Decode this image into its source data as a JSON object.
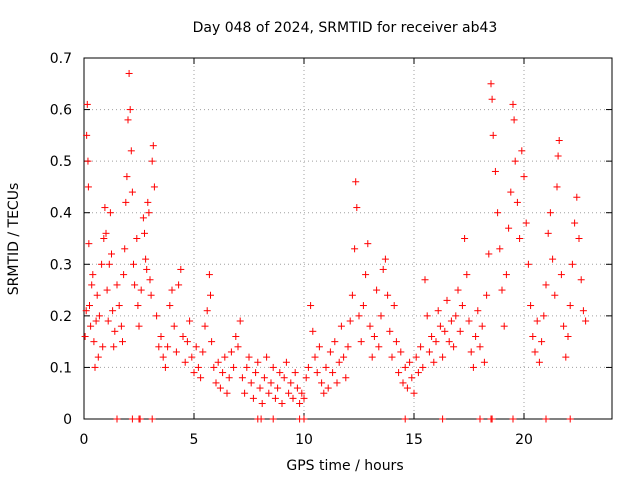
{
  "chart_data": {
    "type": "scatter",
    "title": "Day 048 of 2024, SRMTID for receiver ab43",
    "xlabel": "GPS time / hours",
    "ylabel": "SRMTID / TECUs",
    "xlim": [
      0,
      24
    ],
    "ylim": [
      0,
      0.7
    ],
    "xticks": [
      "0",
      "5",
      "10",
      "15",
      "20"
    ],
    "yticks": [
      "0",
      "0.1",
      "0.2",
      "0.3",
      "0.4",
      "0.5",
      "0.6",
      "0.7"
    ],
    "grid": true,
    "marker": "+",
    "series": [
      {
        "name": "SRMTID",
        "color": "#ff0000",
        "points": [
          [
            0.05,
            0.16
          ],
          [
            0.1,
            0.21
          ],
          [
            0.12,
            0.55
          ],
          [
            0.15,
            0.61
          ],
          [
            0.18,
            0.5
          ],
          [
            0.2,
            0.45
          ],
          [
            0.22,
            0.34
          ],
          [
            0.25,
            0.22
          ],
          [
            0.3,
            0.18
          ],
          [
            0.35,
            0.26
          ],
          [
            0.4,
            0.28
          ],
          [
            0.45,
            0.15
          ],
          [
            0.5,
            0.1
          ],
          [
            0.55,
            0.19
          ],
          [
            0.6,
            0.24
          ],
          [
            0.65,
            0.12
          ],
          [
            0.7,
            0.2
          ],
          [
            0.8,
            0.3
          ],
          [
            0.85,
            0.14
          ],
          [
            0.9,
            0.35
          ],
          [
            0.95,
            0.41
          ],
          [
            1.0,
            0.36
          ],
          [
            1.05,
            0.25
          ],
          [
            1.1,
            0.19
          ],
          [
            1.15,
            0.3
          ],
          [
            1.2,
            0.4
          ],
          [
            1.25,
            0.32
          ],
          [
            1.3,
            0.21
          ],
          [
            1.35,
            0.14
          ],
          [
            1.4,
            0.17
          ],
          [
            1.5,
            0.26
          ],
          [
            1.6,
            0.22
          ],
          [
            1.7,
            0.18
          ],
          [
            1.75,
            0.15
          ],
          [
            1.8,
            0.28
          ],
          [
            1.85,
            0.33
          ],
          [
            1.9,
            0.42
          ],
          [
            1.95,
            0.47
          ],
          [
            2.0,
            0.58
          ],
          [
            2.05,
            0.67
          ],
          [
            2.1,
            0.6
          ],
          [
            2.15,
            0.52
          ],
          [
            2.2,
            0.44
          ],
          [
            2.25,
            0.3
          ],
          [
            2.3,
            0.26
          ],
          [
            2.4,
            0.35
          ],
          [
            2.45,
            0.22
          ],
          [
            2.5,
            0.18
          ],
          [
            2.6,
            0.25
          ],
          [
            2.7,
            0.39
          ],
          [
            2.75,
            0.36
          ],
          [
            2.8,
            0.31
          ],
          [
            2.85,
            0.29
          ],
          [
            2.9,
            0.42
          ],
          [
            2.95,
            0.4
          ],
          [
            3.0,
            0.27
          ],
          [
            3.05,
            0.24
          ],
          [
            3.1,
            0.5
          ],
          [
            3.15,
            0.53
          ],
          [
            3.2,
            0.45
          ],
          [
            3.3,
            0.2
          ],
          [
            3.4,
            0.14
          ],
          [
            3.5,
            0.16
          ],
          [
            3.6,
            0.12
          ],
          [
            3.7,
            0.1
          ],
          [
            3.8,
            0.14
          ],
          [
            3.9,
            0.22
          ],
          [
            4.0,
            0.25
          ],
          [
            4.1,
            0.18
          ],
          [
            4.2,
            0.13
          ],
          [
            4.3,
            0.26
          ],
          [
            4.4,
            0.29
          ],
          [
            4.5,
            0.16
          ],
          [
            4.6,
            0.11
          ],
          [
            4.7,
            0.15
          ],
          [
            4.8,
            0.19
          ],
          [
            4.9,
            0.12
          ],
          [
            5.0,
            0.09
          ],
          [
            5.1,
            0.14
          ],
          [
            5.2,
            0.1
          ],
          [
            5.3,
            0.08
          ],
          [
            5.4,
            0.13
          ],
          [
            5.5,
            0.18
          ],
          [
            5.6,
            0.21
          ],
          [
            5.7,
            0.28
          ],
          [
            5.75,
            0.24
          ],
          [
            5.8,
            0.15
          ],
          [
            5.9,
            0.1
          ],
          [
            6.0,
            0.07
          ],
          [
            6.1,
            0.11
          ],
          [
            6.2,
            0.06
          ],
          [
            6.3,
            0.09
          ],
          [
            6.4,
            0.12
          ],
          [
            6.5,
            0.05
          ],
          [
            6.6,
            0.08
          ],
          [
            6.7,
            0.13
          ],
          [
            6.8,
            0.1
          ],
          [
            6.9,
            0.16
          ],
          [
            7.0,
            0.14
          ],
          [
            7.1,
            0.19
          ],
          [
            7.2,
            0.08
          ],
          [
            7.3,
            0.05
          ],
          [
            7.4,
            0.1
          ],
          [
            7.5,
            0.12
          ],
          [
            7.6,
            0.07
          ],
          [
            7.7,
            0.04
          ],
          [
            7.8,
            0.09
          ],
          [
            7.9,
            0.11
          ],
          [
            8.0,
            0.06
          ],
          [
            8.1,
            0.03
          ],
          [
            8.2,
            0.08
          ],
          [
            8.3,
            0.12
          ],
          [
            8.4,
            0.05
          ],
          [
            8.5,
            0.07
          ],
          [
            8.6,
            0.1
          ],
          [
            8.7,
            0.04
          ],
          [
            8.8,
            0.06
          ],
          [
            8.9,
            0.09
          ],
          [
            9.0,
            0.03
          ],
          [
            9.1,
            0.08
          ],
          [
            9.2,
            0.11
          ],
          [
            9.3,
            0.05
          ],
          [
            9.4,
            0.07
          ],
          [
            9.5,
            0.04
          ],
          [
            9.6,
            0.09
          ],
          [
            9.7,
            0.06
          ],
          [
            9.8,
            0.03
          ],
          [
            9.9,
            0.05
          ],
          [
            10.0,
            0.04
          ],
          [
            10.1,
            0.08
          ],
          [
            10.2,
            0.1
          ],
          [
            10.3,
            0.22
          ],
          [
            10.4,
            0.17
          ],
          [
            10.5,
            0.12
          ],
          [
            10.6,
            0.09
          ],
          [
            10.7,
            0.14
          ],
          [
            10.8,
            0.07
          ],
          [
            10.9,
            0.05
          ],
          [
            11.0,
            0.1
          ],
          [
            11.1,
            0.06
          ],
          [
            11.2,
            0.13
          ],
          [
            11.3,
            0.09
          ],
          [
            11.4,
            0.15
          ],
          [
            11.5,
            0.07
          ],
          [
            11.6,
            0.11
          ],
          [
            11.7,
            0.18
          ],
          [
            11.8,
            0.12
          ],
          [
            11.9,
            0.08
          ],
          [
            12.0,
            0.14
          ],
          [
            12.1,
            0.19
          ],
          [
            12.2,
            0.24
          ],
          [
            12.3,
            0.33
          ],
          [
            12.35,
            0.46
          ],
          [
            12.4,
            0.41
          ],
          [
            12.5,
            0.2
          ],
          [
            12.6,
            0.15
          ],
          [
            12.7,
            0.22
          ],
          [
            12.8,
            0.28
          ],
          [
            12.9,
            0.34
          ],
          [
            13.0,
            0.18
          ],
          [
            13.1,
            0.12
          ],
          [
            13.2,
            0.16
          ],
          [
            13.3,
            0.25
          ],
          [
            13.4,
            0.14
          ],
          [
            13.5,
            0.2
          ],
          [
            13.6,
            0.29
          ],
          [
            13.7,
            0.31
          ],
          [
            13.8,
            0.24
          ],
          [
            13.9,
            0.17
          ],
          [
            14.0,
            0.12
          ],
          [
            14.1,
            0.22
          ],
          [
            14.2,
            0.15
          ],
          [
            14.3,
            0.09
          ],
          [
            14.4,
            0.13
          ],
          [
            14.5,
            0.07
          ],
          [
            14.6,
            0.1
          ],
          [
            14.7,
            0.06
          ],
          [
            14.8,
            0.11
          ],
          [
            14.9,
            0.08
          ],
          [
            15.0,
            0.05
          ],
          [
            15.1,
            0.12
          ],
          [
            15.2,
            0.09
          ],
          [
            15.3,
            0.14
          ],
          [
            15.4,
            0.1
          ],
          [
            15.5,
            0.27
          ],
          [
            15.6,
            0.2
          ],
          [
            15.7,
            0.13
          ],
          [
            15.8,
            0.16
          ],
          [
            15.9,
            0.11
          ],
          [
            16.0,
            0.15
          ],
          [
            16.1,
            0.21
          ],
          [
            16.2,
            0.18
          ],
          [
            16.3,
            0.12
          ],
          [
            16.4,
            0.17
          ],
          [
            16.5,
            0.23
          ],
          [
            16.6,
            0.15
          ],
          [
            16.7,
            0.19
          ],
          [
            16.8,
            0.14
          ],
          [
            16.9,
            0.2
          ],
          [
            17.0,
            0.25
          ],
          [
            17.1,
            0.17
          ],
          [
            17.2,
            0.22
          ],
          [
            17.3,
            0.35
          ],
          [
            17.4,
            0.28
          ],
          [
            17.5,
            0.19
          ],
          [
            17.6,
            0.13
          ],
          [
            17.7,
            0.1
          ],
          [
            17.8,
            0.16
          ],
          [
            17.9,
            0.21
          ],
          [
            18.0,
            0.14
          ],
          [
            18.1,
            0.18
          ],
          [
            18.2,
            0.11
          ],
          [
            18.3,
            0.24
          ],
          [
            18.4,
            0.32
          ],
          [
            18.5,
            0.65
          ],
          [
            18.55,
            0.62
          ],
          [
            18.6,
            0.55
          ],
          [
            18.7,
            0.48
          ],
          [
            18.8,
            0.4
          ],
          [
            18.9,
            0.33
          ],
          [
            19.0,
            0.25
          ],
          [
            19.1,
            0.18
          ],
          [
            19.2,
            0.28
          ],
          [
            19.3,
            0.37
          ],
          [
            19.4,
            0.44
          ],
          [
            19.5,
            0.61
          ],
          [
            19.55,
            0.58
          ],
          [
            19.6,
            0.5
          ],
          [
            19.7,
            0.42
          ],
          [
            19.8,
            0.35
          ],
          [
            19.9,
            0.52
          ],
          [
            20.0,
            0.47
          ],
          [
            20.1,
            0.38
          ],
          [
            20.2,
            0.3
          ],
          [
            20.3,
            0.22
          ],
          [
            20.4,
            0.16
          ],
          [
            20.5,
            0.13
          ],
          [
            20.6,
            0.19
          ],
          [
            20.7,
            0.11
          ],
          [
            20.8,
            0.15
          ],
          [
            20.9,
            0.2
          ],
          [
            21.0,
            0.26
          ],
          [
            21.1,
            0.36
          ],
          [
            21.2,
            0.4
          ],
          [
            21.3,
            0.31
          ],
          [
            21.4,
            0.24
          ],
          [
            21.5,
            0.45
          ],
          [
            21.55,
            0.51
          ],
          [
            21.6,
            0.54
          ],
          [
            21.7,
            0.28
          ],
          [
            21.8,
            0.18
          ],
          [
            21.9,
            0.12
          ],
          [
            22.0,
            0.16
          ],
          [
            22.1,
            0.22
          ],
          [
            22.2,
            0.3
          ],
          [
            22.3,
            0.38
          ],
          [
            22.4,
            0.43
          ],
          [
            22.5,
            0.35
          ],
          [
            22.6,
            0.27
          ],
          [
            22.7,
            0.21
          ],
          [
            22.8,
            0.19
          ]
        ],
        "zero_points": [
          1.5,
          2.2,
          2.5,
          2.55,
          3.1,
          7.9,
          8.05,
          8.6,
          9.8,
          10.0,
          14.6,
          16.3,
          18.0,
          18.5,
          18.55,
          19.5,
          21.0,
          22.1
        ]
      }
    ]
  }
}
